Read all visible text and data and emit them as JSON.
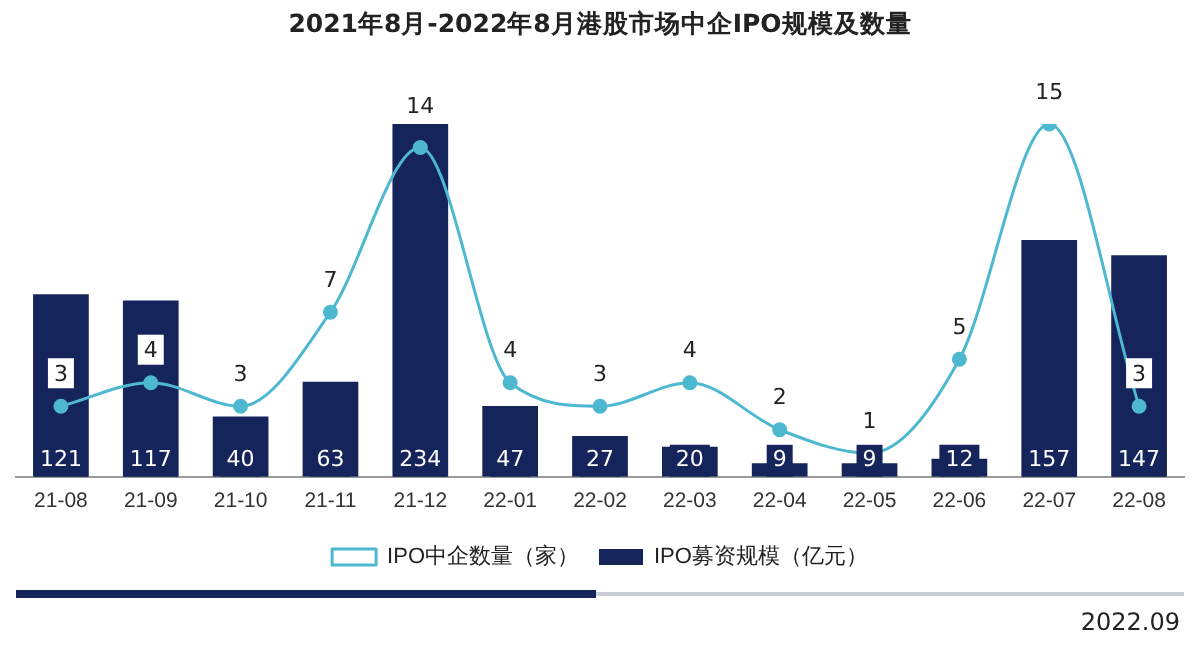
{
  "chart_data": {
    "type": "bar",
    "title": "2021年8月-2022年8月港股市场中企IPO规模及数量",
    "categories": [
      "21-08",
      "21-09",
      "21-10",
      "21-11",
      "21-12",
      "22-01",
      "22-02",
      "22-03",
      "22-04",
      "22-05",
      "22-06",
      "22-07",
      "22-08"
    ],
    "series": [
      {
        "name": "IPO募资规模（亿元）",
        "color": "#16245c",
        "values": [
          121,
          117,
          40,
          63,
          234,
          47,
          27,
          20,
          9,
          9,
          12,
          157,
          147
        ]
      },
      {
        "name": "IPO中企数量（家）",
        "type": "line",
        "axis": "y2",
        "color": "#4db8d0",
        "values": [
          3,
          4,
          3,
          7,
          14,
          4,
          3,
          4,
          2,
          1,
          5,
          15,
          3
        ]
      }
    ],
    "data_labels": true,
    "legend": "bottom",
    "marker": "circle",
    "grid": false,
    "annotations": [
      "2022.09"
    ]
  }
}
